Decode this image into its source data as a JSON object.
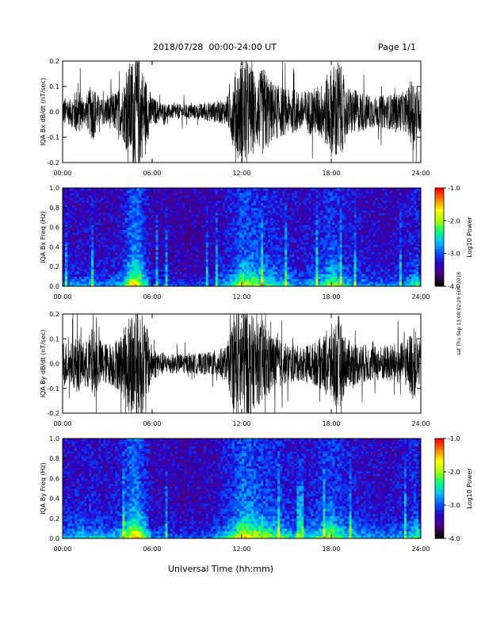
{
  "header": {
    "title": "2018/07/28  00:00-24:00 UT",
    "page": "Page 1/1"
  },
  "side_stamp": "sat Thu Sep 13 08:02:29 EDT 2018",
  "xlabel": "Universal Time (hh:mm)",
  "colors": {
    "trace": "#000000",
    "cmap": [
      "#000000",
      "#4a007a",
      "#2a00c8",
      "#0050ff",
      "#00c0ff",
      "#00ff80",
      "#a8ff00",
      "#ffff00",
      "#ff8000",
      "#ff0000"
    ]
  },
  "chart_data": [
    {
      "type": "line",
      "ylabel": "IQA Bx dB/dt (nT/sec)",
      "ylim": [
        -0.2,
        0.2
      ],
      "yticks": [
        "0.2",
        "0.1",
        "0.0",
        "-0.1",
        "-0.2"
      ],
      "xticks": [
        "00:00",
        "06:00",
        "12:00",
        "18:00",
        "24:00"
      ],
      "xlim": [
        "00:00",
        "24:00"
      ],
      "amplitude_envelope": {
        "t_hours": [
          0,
          0.5,
          1,
          1.5,
          2,
          2.5,
          3,
          3.5,
          4,
          4.5,
          5,
          5.5,
          6,
          6.5,
          7,
          8,
          9,
          10,
          11,
          11.5,
          12,
          12.5,
          13,
          13.5,
          14,
          15,
          16,
          17,
          17.5,
          18,
          18.5,
          19,
          20,
          21,
          22,
          23,
          23.5,
          24
        ],
        "amp": [
          0.06,
          0.05,
          0.1,
          0.05,
          0.12,
          0.05,
          0.06,
          0.08,
          0.1,
          0.2,
          0.25,
          0.15,
          0.06,
          0.04,
          0.03,
          0.03,
          0.03,
          0.04,
          0.05,
          0.15,
          0.22,
          0.2,
          0.14,
          0.18,
          0.12,
          0.09,
          0.08,
          0.1,
          0.12,
          0.18,
          0.22,
          0.1,
          0.08,
          0.06,
          0.07,
          0.08,
          0.15,
          0.07
        ]
      }
    },
    {
      "type": "heatmap",
      "ylabel": "IQA Bx Freq (Hz)",
      "ylim": [
        0,
        1.0
      ],
      "yticks": [
        "1.0",
        "0.8",
        "0.6",
        "0.4",
        "0.2",
        "0.0"
      ],
      "xticks": [
        "00:00",
        "06:00",
        "12:00",
        "18:00",
        "24:00"
      ],
      "colorbar": {
        "label": "Log10 Power",
        "range": [
          -4.0,
          -1.0
        ],
        "ticks": [
          "-1.0",
          "-2.0",
          "-3.0",
          "-4.0"
        ]
      },
      "activity": {
        "t_hours": [
          0,
          1,
          2,
          3,
          4,
          4.5,
          5,
          5.5,
          6,
          8,
          10,
          11.5,
          12,
          13,
          14,
          16,
          17.5,
          18,
          19,
          21,
          23,
          23.8,
          24
        ],
        "level": [
          0.35,
          0.4,
          0.4,
          0.35,
          0.45,
          0.9,
          1.0,
          0.6,
          0.3,
          0.25,
          0.3,
          0.6,
          0.85,
          0.75,
          0.6,
          0.4,
          0.6,
          0.8,
          0.5,
          0.35,
          0.4,
          0.65,
          0.35
        ]
      }
    },
    {
      "type": "line",
      "ylabel": "IQA By dB/dt (nT/sec)",
      "ylim": [
        -0.2,
        0.2
      ],
      "yticks": [
        "0.2",
        "0.1",
        "0.0",
        "-0.1",
        "-0.2"
      ],
      "xticks": [
        "00:00",
        "06:00",
        "12:00",
        "18:00",
        "24:00"
      ],
      "xlim": [
        "00:00",
        "24:00"
      ],
      "amplitude_envelope": {
        "t_hours": [
          0,
          0.5,
          1,
          1.5,
          2,
          2.5,
          3,
          3.5,
          4,
          4.5,
          5,
          5.5,
          6,
          6.5,
          7,
          8,
          9,
          10,
          11,
          11.5,
          12,
          12.5,
          13,
          13.5,
          14,
          15,
          16,
          17,
          17.5,
          18,
          18.5,
          19,
          20,
          21,
          22,
          23,
          23.5,
          24
        ],
        "amp": [
          0.1,
          0.08,
          0.12,
          0.08,
          0.15,
          0.1,
          0.08,
          0.1,
          0.12,
          0.22,
          0.25,
          0.18,
          0.07,
          0.05,
          0.04,
          0.04,
          0.04,
          0.05,
          0.07,
          0.2,
          0.25,
          0.22,
          0.16,
          0.18,
          0.12,
          0.08,
          0.07,
          0.09,
          0.12,
          0.16,
          0.2,
          0.1,
          0.08,
          0.07,
          0.08,
          0.09,
          0.15,
          0.08
        ]
      }
    },
    {
      "type": "heatmap",
      "ylabel": "IQA By Freq (Hz)",
      "ylim": [
        0,
        1.0
      ],
      "yticks": [
        "1.0",
        "0.8",
        "0.6",
        "0.4",
        "0.2",
        "0.0"
      ],
      "xticks": [
        "00:00",
        "06:00",
        "12:00",
        "18:00",
        "24:00"
      ],
      "colorbar": {
        "label": "Log10 Power",
        "range": [
          -4.0,
          -1.0
        ],
        "ticks": [
          "-1.0",
          "-2.0",
          "-3.0",
          "-4.0"
        ]
      },
      "activity": {
        "t_hours": [
          0,
          1,
          2,
          3,
          4,
          4.5,
          5,
          5.5,
          6,
          8,
          10,
          11.5,
          12,
          13,
          14,
          16,
          17.5,
          18,
          19,
          21,
          23,
          23.8,
          24
        ],
        "level": [
          0.45,
          0.5,
          0.5,
          0.45,
          0.55,
          0.95,
          1.0,
          0.7,
          0.35,
          0.3,
          0.35,
          0.7,
          0.95,
          0.85,
          0.7,
          0.45,
          0.65,
          0.85,
          0.55,
          0.4,
          0.45,
          0.7,
          0.4
        ]
      }
    }
  ]
}
